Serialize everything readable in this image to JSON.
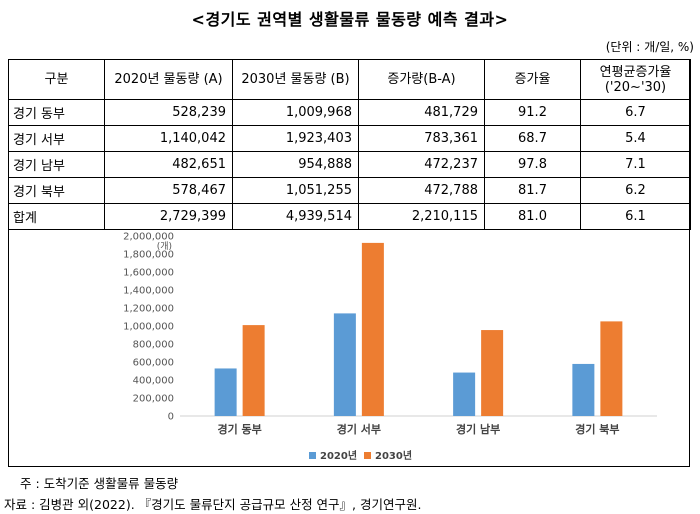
{
  "title": "<경기도 권역별 생활물류 물동량 예측 결과>",
  "unit": "(단위 : 개/일, %)",
  "table": {
    "headers": [
      "구분",
      "2020년 물동량 (A)",
      "2030년 물동량 (B)",
      "증가량(B-A)",
      "증가율",
      "연평균증가율",
      "('20~'30)"
    ],
    "rows": [
      {
        "name": "경기 동부",
        "a": "528,239",
        "b": "1,009,968",
        "inc": "481,729",
        "rate": "91.2",
        "cagr": "6.7"
      },
      {
        "name": "경기 서부",
        "a": "1,140,042",
        "b": "1,923,403",
        "inc": "783,361",
        "rate": "68.7",
        "cagr": "5.4"
      },
      {
        "name": "경기 남부",
        "a": "482,651",
        "b": "954,888",
        "inc": "472,237",
        "rate": "97.8",
        "cagr": "7.1"
      },
      {
        "name": "경기 북부",
        "a": "578,467",
        "b": "1,051,255",
        "inc": "472,788",
        "rate": "81.7",
        "cagr": "6.2"
      },
      {
        "name": "합계",
        "a": "2,729,399",
        "b": "4,939,514",
        "inc": "2,210,115",
        "rate": "81.0",
        "cagr": "6.1"
      }
    ]
  },
  "chart_data": {
    "type": "bar",
    "categories": [
      "경기 동부",
      "경기 서부",
      "경기 남부",
      "경기 북부"
    ],
    "series": [
      {
        "name": "2020년",
        "values": [
          528239,
          1140042,
          482651,
          578467
        ],
        "color": "#5b9bd5"
      },
      {
        "name": "2030년",
        "values": [
          1009968,
          1923403,
          954888,
          1051255
        ],
        "color": "#ed7d31"
      }
    ],
    "ylim": [
      0,
      2000000
    ],
    "yticks": [
      "0",
      "200,000",
      "400,000",
      "600,000",
      "800,000",
      "1,000,000",
      "1,200,000",
      "1,400,000",
      "1,600,000",
      "1,800,000",
      "2,000,000"
    ],
    "yunit": "(개)",
    "legend": "bottom",
    "grid": false
  },
  "notes": {
    "note1": "주 : 도착기준 생활물류 물동량",
    "source": "자료 : 김병관 외(2022). 『경기도 물류단지 공급규모 산정 연구』, 경기연구원."
  }
}
